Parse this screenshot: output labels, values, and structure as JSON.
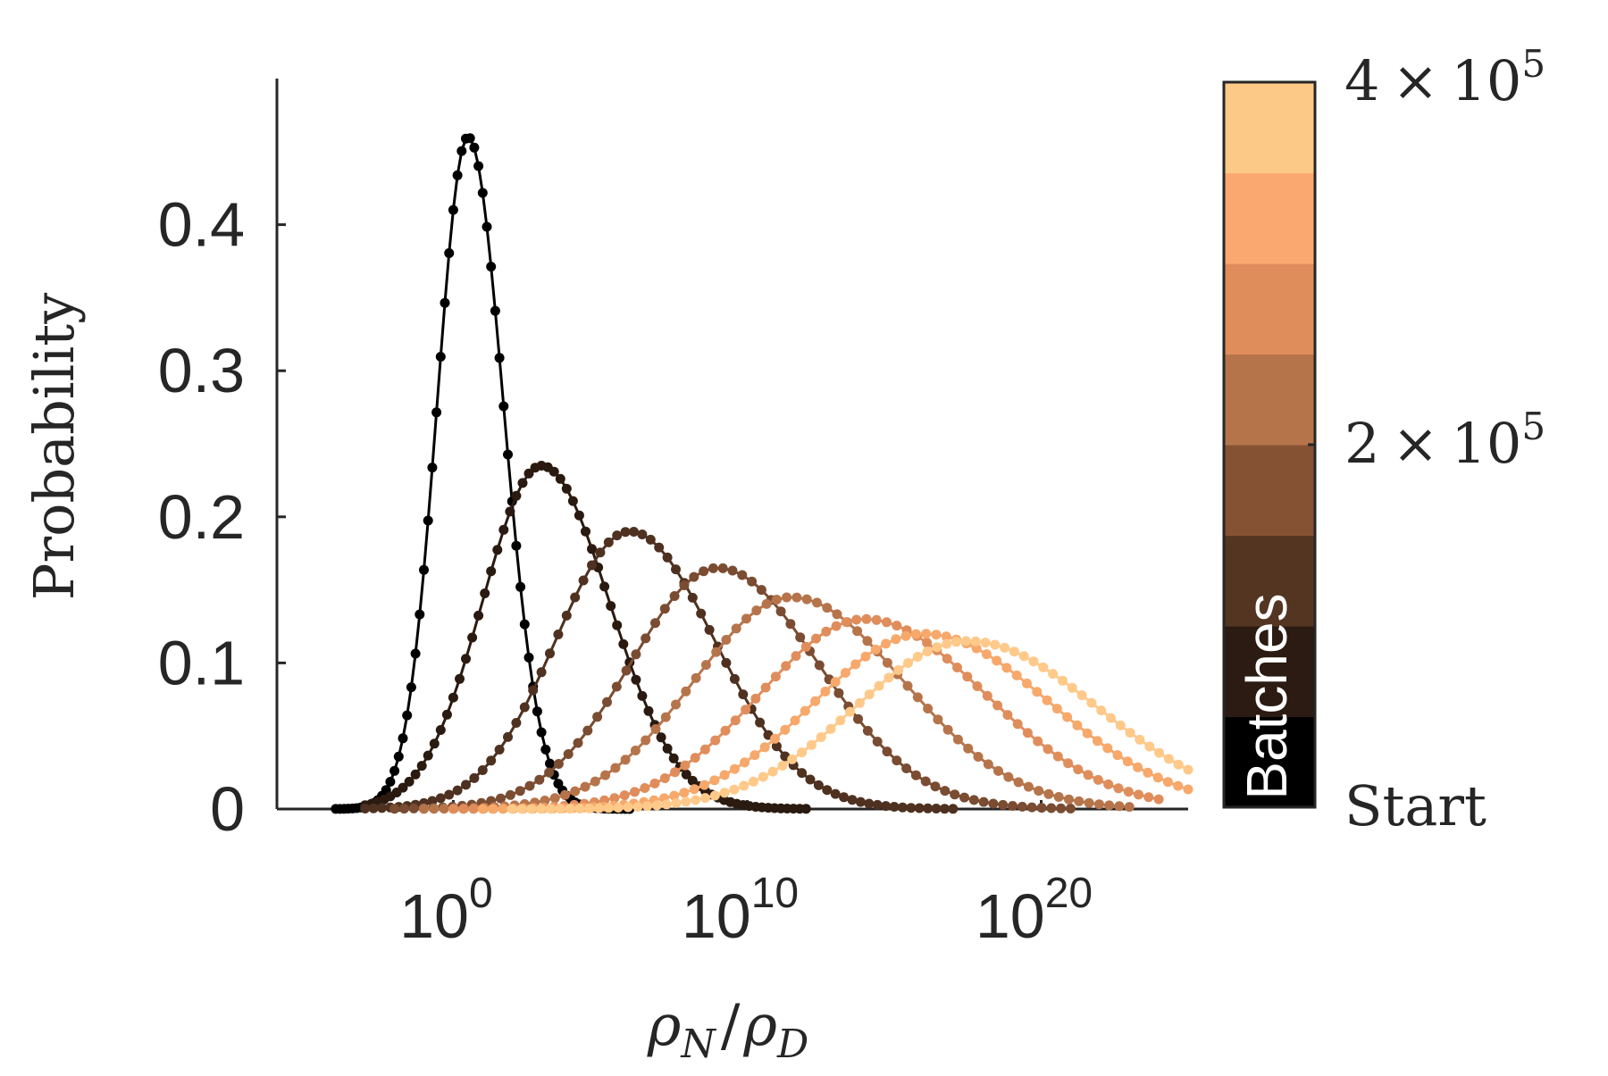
{
  "chart_data": {
    "type": "line",
    "title": "",
    "xlabel": "ρ_N/ρ_D",
    "xlabel_parts": {
      "base_left": "ρ",
      "sub_left": "N",
      "slash": "/",
      "base_right": "ρ",
      "sub_right": "D"
    },
    "ylabel": "Probability",
    "x_scale": "log",
    "xlim": [
      1e-06,
      1e+25
    ],
    "ylim": [
      0,
      0.5
    ],
    "x_ticks": [
      {
        "value": 1,
        "base": "10",
        "exp": "0"
      },
      {
        "value": 10000000000.0,
        "base": "10",
        "exp": "10"
      },
      {
        "value": 1e+20,
        "base": "10",
        "exp": "20"
      }
    ],
    "y_ticks": [
      {
        "value": 0,
        "label": "0"
      },
      {
        "value": 0.1,
        "label": "0.1"
      },
      {
        "value": 0.2,
        "label": "0.2"
      },
      {
        "value": 0.3,
        "label": "0.3"
      },
      {
        "value": 0.4,
        "label": "0.4"
      }
    ],
    "grid": false,
    "markers": true,
    "series": [
      {
        "color": "#000000",
        "peak_x": 0.5,
        "peak_y": 0.46,
        "sigma": 1.2,
        "x_start": -4,
        "x_end": 6
      },
      {
        "color": "#2a1a10",
        "peak_x": 3.0,
        "peak_y": 0.235,
        "sigma": 2.3,
        "x_start": -3,
        "x_end": 12
      },
      {
        "color": "#4e3120",
        "peak_x": 6.0,
        "peak_y": 0.19,
        "sigma": 2.9,
        "x_start": -3,
        "x_end": 17
      },
      {
        "color": "#7a4c32",
        "peak_x": 9.0,
        "peak_y": 0.165,
        "sigma": 3.4,
        "x_start": -2,
        "x_end": 21
      },
      {
        "color": "#b6744b",
        "peak_x": 11.5,
        "peak_y": 0.145,
        "sigma": 3.8,
        "x_start": -1,
        "x_end": 23
      },
      {
        "color": "#e08d5c",
        "peak_x": 14.0,
        "peak_y": 0.13,
        "sigma": 4.1,
        "x_start": 0,
        "x_end": 24
      },
      {
        "color": "#f7a86b",
        "peak_x": 16.0,
        "peak_y": 0.12,
        "sigma": 4.3,
        "x_start": 1,
        "x_end": 25
      },
      {
        "color": "#ffc98a",
        "peak_x": 17.5,
        "peak_y": 0.115,
        "sigma": 4.4,
        "x_start": 2,
        "x_end": 25
      }
    ],
    "colorbar": {
      "colors": [
        "#000000",
        "#2b1b12",
        "#533522",
        "#855234",
        "#b6744b",
        "#e08d5c",
        "#fba870",
        "#fdc986"
      ],
      "label": "Batches",
      "tick_labels": [
        {
          "key": "top",
          "mantissa": "4",
          "times": "×",
          "base": "10",
          "exp": "5"
        },
        {
          "key": "mid",
          "mantissa": "2",
          "times": "×",
          "base": "10",
          "exp": "5"
        },
        {
          "key": "bottom",
          "text": "Start"
        }
      ]
    }
  }
}
